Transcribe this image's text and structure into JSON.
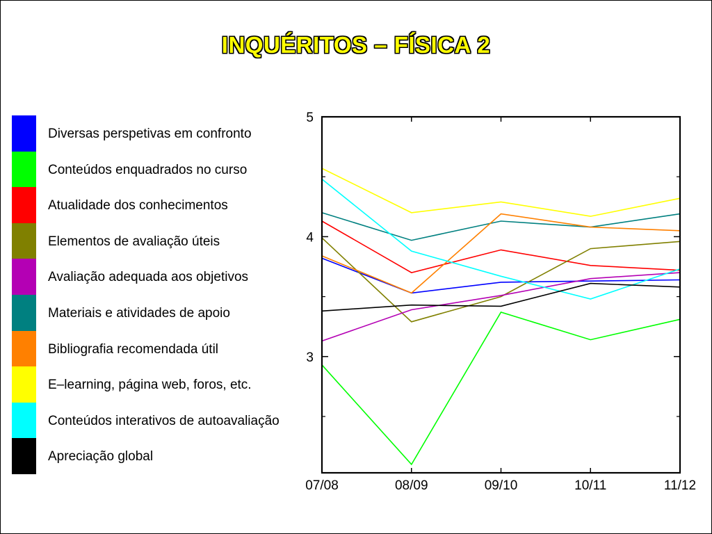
{
  "title": "INQUÉRITOS – FÍSICA 2",
  "chart_data": {
    "type": "line",
    "title": "INQUÉRITOS – FÍSICA 2",
    "x": [
      "07/08",
      "08/09",
      "09/10",
      "10/11",
      "11/12"
    ],
    "ylim": [
      2.03,
      5.0
    ],
    "yticks": [
      3,
      4,
      5
    ],
    "grid": false,
    "legend_position": "left",
    "series": [
      {
        "name": "Diversas perspetivas em confronto",
        "color": "#0000ff",
        "values": [
          3.82,
          3.53,
          3.62,
          3.63,
          3.64
        ]
      },
      {
        "name": "Conteúdos enquadrados no curso",
        "color": "#00ff00",
        "values": [
          2.93,
          2.1,
          3.37,
          3.14,
          3.31
        ]
      },
      {
        "name": "Atualidade dos conhecimentos",
        "color": "#ff0000",
        "values": [
          4.13,
          3.7,
          3.89,
          3.76,
          3.72
        ]
      },
      {
        "name": "Elementos de avaliação úteis",
        "color": "#808000",
        "values": [
          3.99,
          3.29,
          3.5,
          3.9,
          3.96
        ]
      },
      {
        "name": "Avaliação adequada aos objetivos",
        "color": "#b400b4",
        "values": [
          3.13,
          3.39,
          3.51,
          3.65,
          3.7
        ]
      },
      {
        "name": "Materiais e atividades de apoio",
        "color": "#008080",
        "values": [
          4.2,
          3.97,
          4.13,
          4.08,
          4.19
        ]
      },
      {
        "name": "Bibliografia recomendada útil",
        "color": "#ff8000",
        "values": [
          3.84,
          3.53,
          4.19,
          4.08,
          4.05
        ]
      },
      {
        "name": "E–learning, página web, foros, etc.",
        "color": "#ffff00",
        "values": [
          4.57,
          4.2,
          4.29,
          4.17,
          4.32
        ]
      },
      {
        "name": "Conteúdos interativos de autoavaliação",
        "color": "#00ffff",
        "values": [
          4.48,
          3.88,
          3.67,
          3.48,
          3.73
        ]
      },
      {
        "name": "Apreciação global",
        "color": "#000000",
        "values": [
          3.38,
          3.43,
          3.42,
          3.61,
          3.58
        ]
      }
    ]
  }
}
